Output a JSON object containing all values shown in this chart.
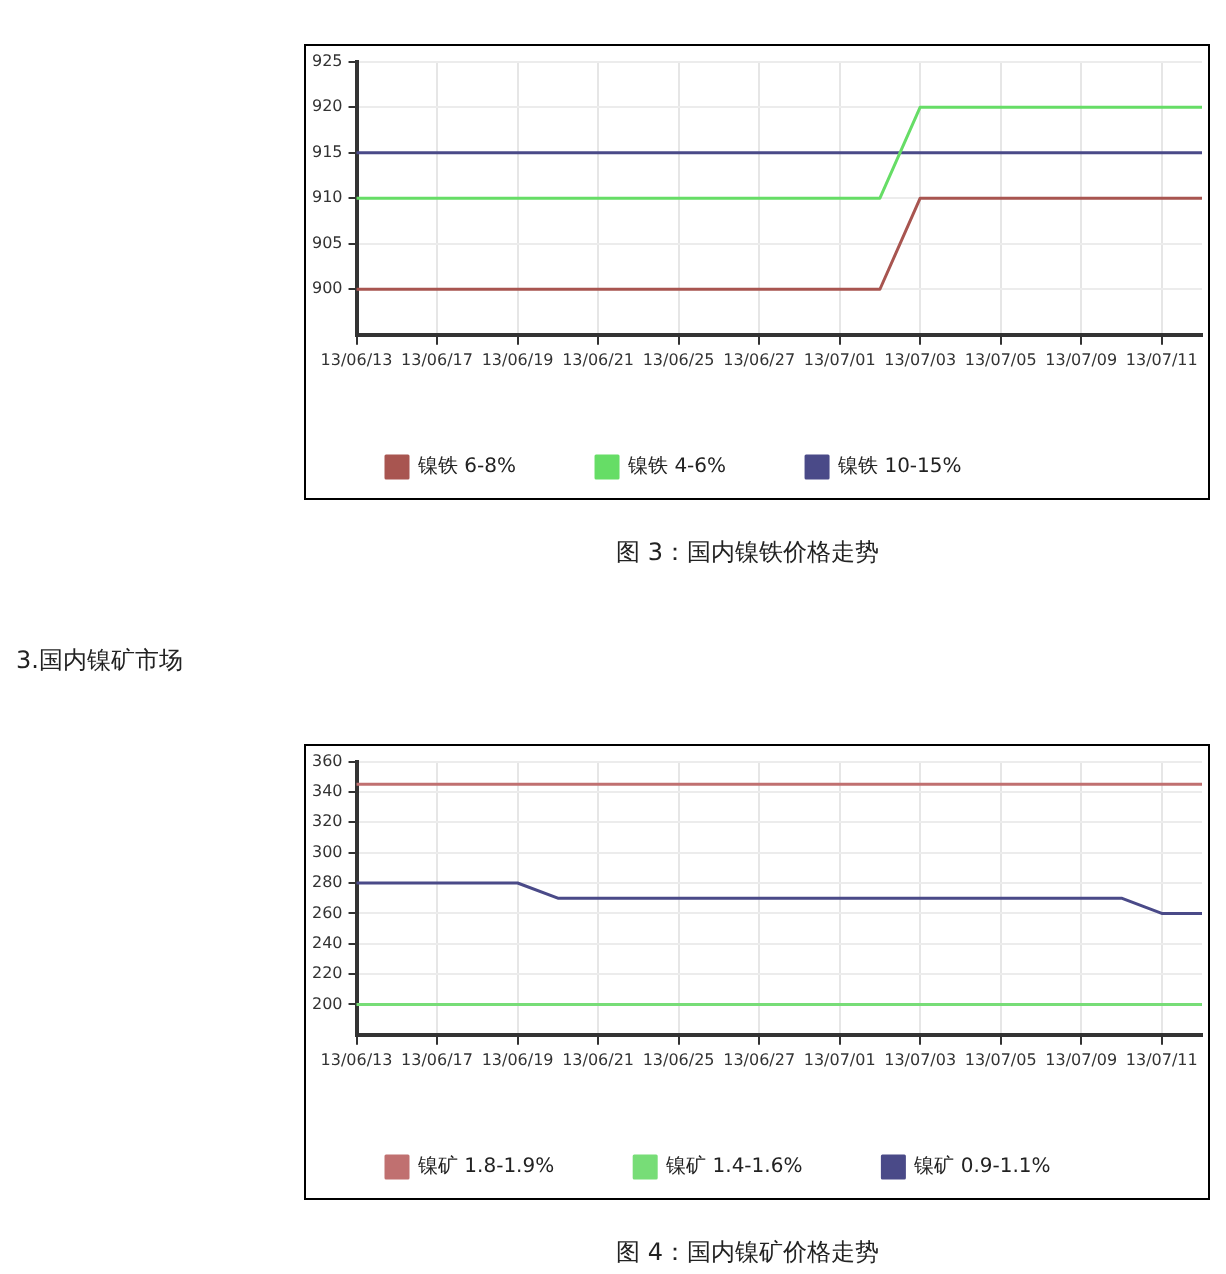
{
  "chart_data": [
    {
      "type": "line",
      "title": "图 3：国内镍铁价格走势",
      "categories": [
        "13/06/13",
        null,
        "13/06/17",
        null,
        "13/06/19",
        null,
        "13/06/21",
        null,
        "13/06/25",
        null,
        "13/06/27",
        null,
        "13/07/01",
        null,
        "13/07/03",
        null,
        "13/07/05",
        null,
        "13/07/09",
        null,
        "13/07/11",
        null
      ],
      "series": [
        {
          "name": "镍铁 6-8%",
          "color": "#a85550",
          "values": [
            900,
            900,
            900,
            900,
            900,
            900,
            900,
            900,
            900,
            900,
            900,
            900,
            900,
            900,
            910,
            910,
            910,
            910,
            910,
            910,
            910,
            910
          ]
        },
        {
          "name": "镍铁 4-6%",
          "color": "#66dd66",
          "values": [
            910,
            910,
            910,
            910,
            910,
            910,
            910,
            910,
            910,
            910,
            910,
            910,
            910,
            910,
            920,
            920,
            920,
            920,
            920,
            920,
            920,
            920
          ]
        },
        {
          "name": "镍铁 10-15%",
          "color": "#4a4a88",
          "values": [
            915,
            915,
            915,
            915,
            915,
            915,
            915,
            915,
            915,
            915,
            915,
            915,
            915,
            915,
            915,
            915,
            915,
            915,
            915,
            915,
            915,
            915
          ]
        }
      ],
      "ylim": [
        895,
        925
      ],
      "yticks": [
        900,
        905,
        910,
        915,
        920,
        925
      ],
      "grid": true,
      "legend": "bottom left",
      "marker": "none",
      "line_style": "solid"
    },
    {
      "type": "line",
      "title": "图 4：国内镍矿价格走势",
      "annotations": [
        "3.国内镍矿市场"
      ],
      "categories": [
        "13/06/13",
        null,
        "13/06/17",
        null,
        "13/06/19",
        null,
        "13/06/21",
        null,
        "13/06/25",
        null,
        "13/06/27",
        null,
        "13/07/01",
        null,
        "13/07/03",
        null,
        "13/07/05",
        null,
        "13/07/09",
        null,
        "13/07/11",
        null
      ],
      "series": [
        {
          "name": "镍矿 1.8-1.9%",
          "color": "#c07070",
          "values": [
            345,
            345,
            345,
            345,
            345,
            345,
            345,
            345,
            345,
            345,
            345,
            345,
            345,
            345,
            345,
            345,
            345,
            345,
            345,
            345,
            345,
            345
          ]
        },
        {
          "name": "镍矿 1.4-1.6%",
          "color": "#77dd77",
          "values": [
            200,
            200,
            200,
            200,
            200,
            200,
            200,
            200,
            200,
            200,
            200,
            200,
            200,
            200,
            200,
            200,
            200,
            200,
            200,
            200,
            200,
            200
          ]
        },
        {
          "name": "镍矿 0.9-1.1%",
          "color": "#4a4a88",
          "values": [
            280,
            280,
            280,
            280,
            280,
            270,
            270,
            270,
            270,
            270,
            270,
            270,
            270,
            270,
            270,
            270,
            270,
            270,
            270,
            270,
            260,
            260
          ]
        }
      ],
      "ylim": [
        180,
        360
      ],
      "yticks": [
        200,
        220,
        240,
        260,
        280,
        300,
        320,
        340,
        360
      ],
      "grid": true,
      "legend": "bottom left",
      "marker": "none",
      "line_style": "solid"
    }
  ]
}
